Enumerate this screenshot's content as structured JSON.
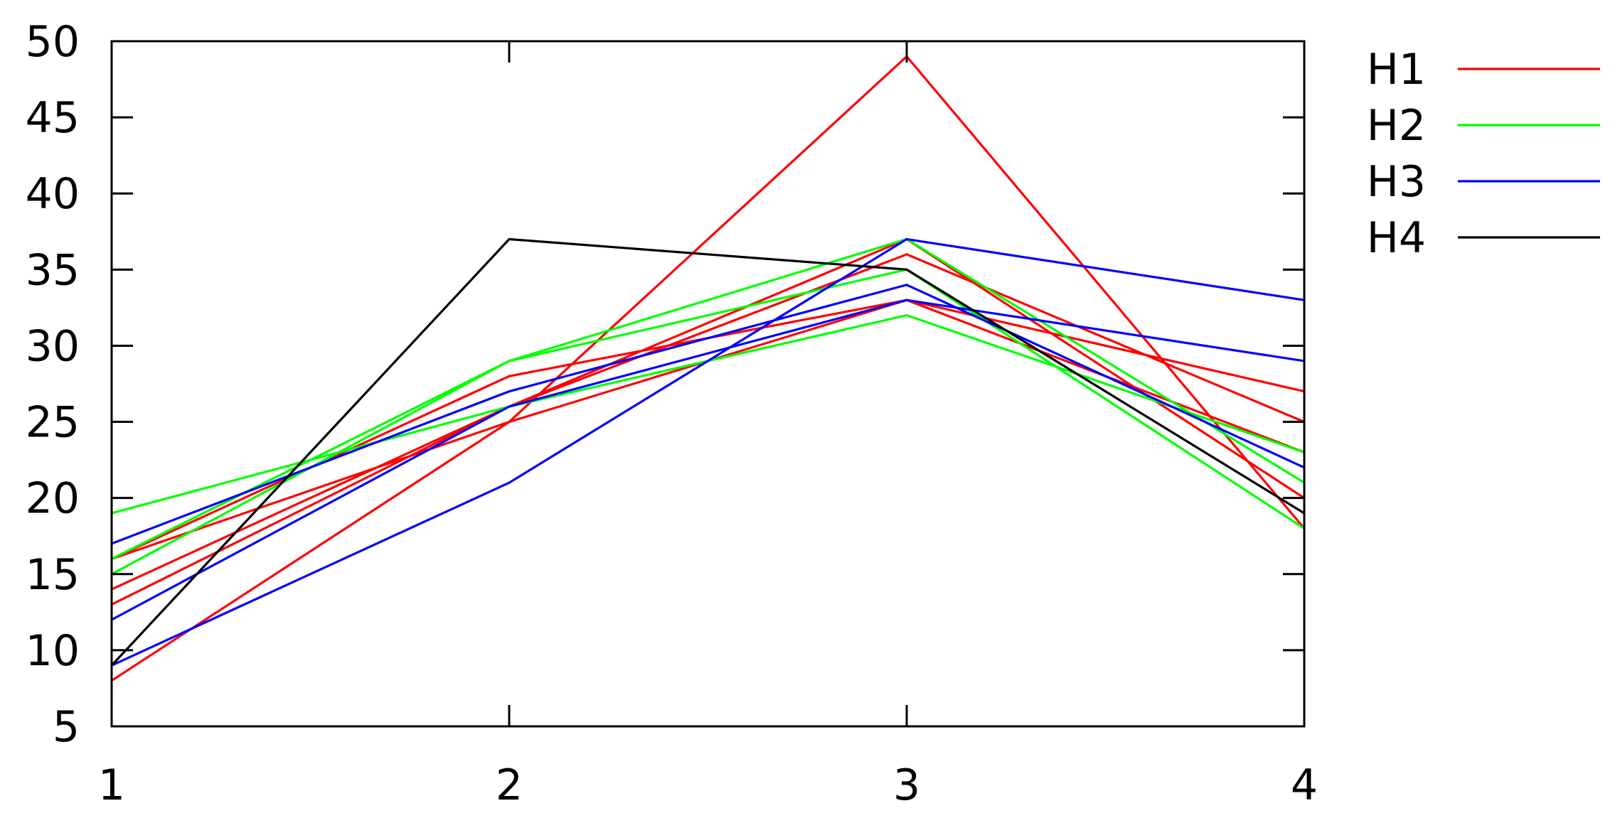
{
  "chart_data": {
    "type": "line",
    "x": [
      1,
      2,
      3,
      4
    ],
    "xlim": [
      1,
      4
    ],
    "ylim": [
      5,
      50
    ],
    "x_ticks": [
      "1",
      "2",
      "3",
      "4"
    ],
    "y_ticks": [
      "5",
      "10",
      "15",
      "20",
      "25",
      "30",
      "35",
      "40",
      "45",
      "50"
    ],
    "grid": false,
    "legend_position": "outside-right-top",
    "legend": [
      {
        "label": "H1",
        "color": "#ff0000"
      },
      {
        "label": "H2",
        "color": "#00ff00"
      },
      {
        "label": "H3",
        "color": "#0000ff"
      },
      {
        "label": "H4",
        "color": "#000000"
      }
    ],
    "series": [
      {
        "group": "H1",
        "color": "#ff0000",
        "values": [
          8,
          25,
          49,
          18
        ]
      },
      {
        "group": "H1",
        "color": "#ff0000",
        "values": [
          16,
          28,
          33,
          27
        ]
      },
      {
        "group": "H1",
        "color": "#ff0000",
        "values": [
          14,
          26,
          37,
          20
        ]
      },
      {
        "group": "H1",
        "color": "#ff0000",
        "values": [
          13,
          26,
          36,
          25
        ]
      },
      {
        "group": "H1",
        "color": "#ff0000",
        "values": [
          16,
          25,
          33,
          23
        ]
      },
      {
        "group": "H2",
        "color": "#00ff00",
        "values": [
          19,
          26,
          32,
          23
        ]
      },
      {
        "group": "H2",
        "color": "#00ff00",
        "values": [
          15,
          29,
          35,
          18
        ]
      },
      {
        "group": "H2",
        "color": "#00ff00",
        "values": [
          16,
          29,
          37,
          21
        ]
      },
      {
        "group": "H3",
        "color": "#0000ff",
        "values": [
          9,
          21,
          37,
          33
        ]
      },
      {
        "group": "H3",
        "color": "#0000ff",
        "values": [
          17,
          27,
          34,
          22
        ]
      },
      {
        "group": "H3",
        "color": "#0000ff",
        "values": [
          12,
          26,
          33,
          29
        ]
      },
      {
        "group": "H4",
        "color": "#000000",
        "values": [
          9,
          37,
          35,
          19
        ]
      }
    ]
  }
}
